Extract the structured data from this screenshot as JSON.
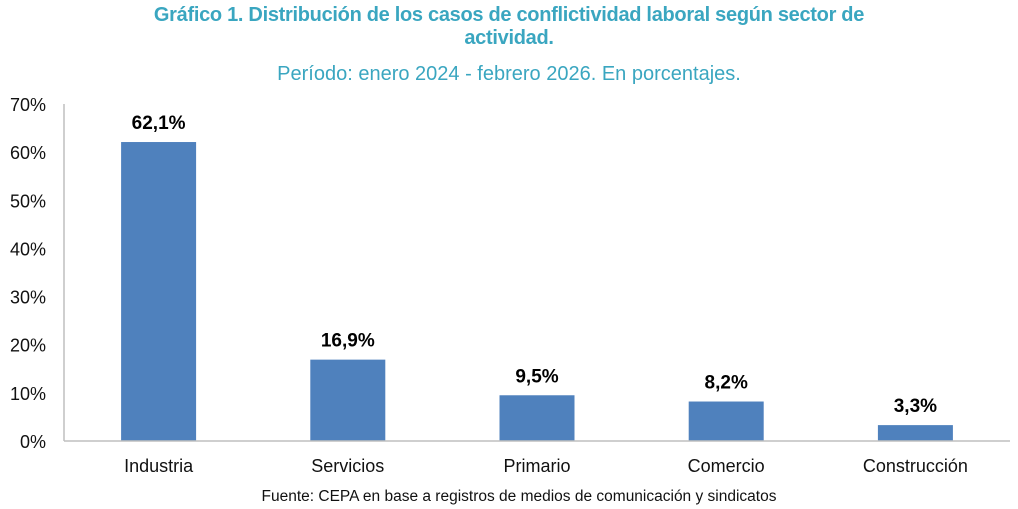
{
  "chart_data": {
    "type": "bar",
    "title_line1": "Gráfico 1.  Distribución de los casos de conflictividad laboral según sector de",
    "title_line2": "actividad.",
    "subtitle": "Período: enero 2024 - febrero 2026. En porcentajes.",
    "categories": [
      "Industria",
      "Servicios",
      "Primario",
      "Comercio",
      "Construcción"
    ],
    "values": [
      62.1,
      16.9,
      9.5,
      8.2,
      3.3
    ],
    "data_labels": [
      "62,1%",
      "16,9%",
      "9,5%",
      "8,2%",
      "3,3%"
    ],
    "ylim": [
      0,
      70
    ],
    "yticks": [
      "0%",
      "10%",
      "20%",
      "30%",
      "40%",
      "50%",
      "60%",
      "70%"
    ],
    "xlabel": "",
    "ylabel": "",
    "grid": false,
    "bar_color": "#4f81bd",
    "source": "Fuente: CEPA en base a registros de medios de comunicación y sindicatos"
  }
}
